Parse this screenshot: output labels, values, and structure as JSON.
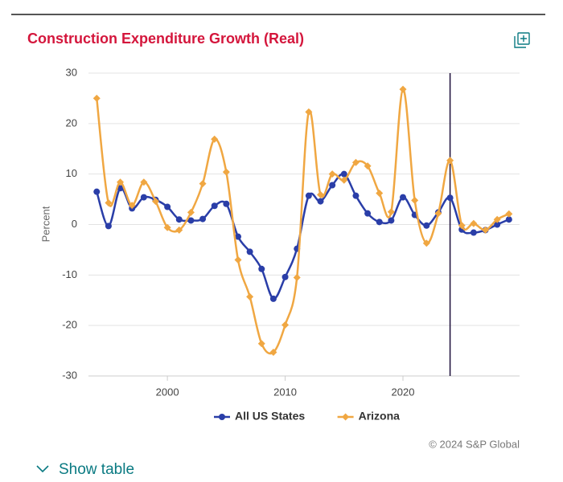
{
  "chart_data": {
    "type": "line",
    "title": "Construction Expenditure Growth (Real)",
    "y_label": "Percent",
    "x": [
      1994,
      1995,
      1996,
      1997,
      1998,
      1999,
      2000,
      2001,
      2002,
      2003,
      2004,
      2005,
      2006,
      2007,
      2008,
      2009,
      2010,
      2011,
      2012,
      2013,
      2014,
      2015,
      2016,
      2017,
      2018,
      2019,
      2020,
      2021,
      2022,
      2023,
      2024,
      2025,
      2026,
      2027,
      2028,
      2029
    ],
    "series": [
      {
        "name": "All US States",
        "color": "#2a3ea8",
        "marker": "circle",
        "values": [
          6.5,
          -0.3,
          7.2,
          3.2,
          5.4,
          4.9,
          3.5,
          1.0,
          0.8,
          1.1,
          3.7,
          4.1,
          -2.4,
          -5.4,
          -8.8,
          -14.7,
          -10.4,
          -4.8,
          5.7,
          4.6,
          7.8,
          10.0,
          5.7,
          2.2,
          0.5,
          0.8,
          5.4,
          1.9,
          -0.2,
          2.4,
          5.3,
          -1.0,
          -1.6,
          -1.1,
          0.0,
          1.0
        ]
      },
      {
        "name": "Arizona",
        "color": "#f0a742",
        "marker": "diamond",
        "values": [
          25.0,
          4.3,
          8.4,
          3.8,
          8.4,
          4.6,
          -0.6,
          -1.1,
          2.4,
          8.1,
          16.9,
          10.4,
          -7.0,
          -14.3,
          -23.6,
          -25.3,
          -19.9,
          -10.5,
          22.3,
          5.9,
          10.0,
          8.8,
          12.3,
          11.6,
          6.2,
          2.5,
          26.8,
          4.8,
          -3.7,
          2.2,
          12.7,
          -0.2,
          0.2,
          -1.1,
          1.0,
          2.1
        ]
      }
    ],
    "xlim": [
      1993.3,
      2029.9
    ],
    "xticks": [
      2000,
      2010,
      2020
    ],
    "ylim": [
      -30,
      30
    ],
    "yticks": [
      -30,
      -20,
      -10,
      0,
      10,
      20,
      30
    ],
    "grid": true,
    "vline": 2024,
    "vline_color": "#1c0f3a",
    "legend": "bottom"
  },
  "credits": "© 2024 S&P Global",
  "show_table": "Show table"
}
